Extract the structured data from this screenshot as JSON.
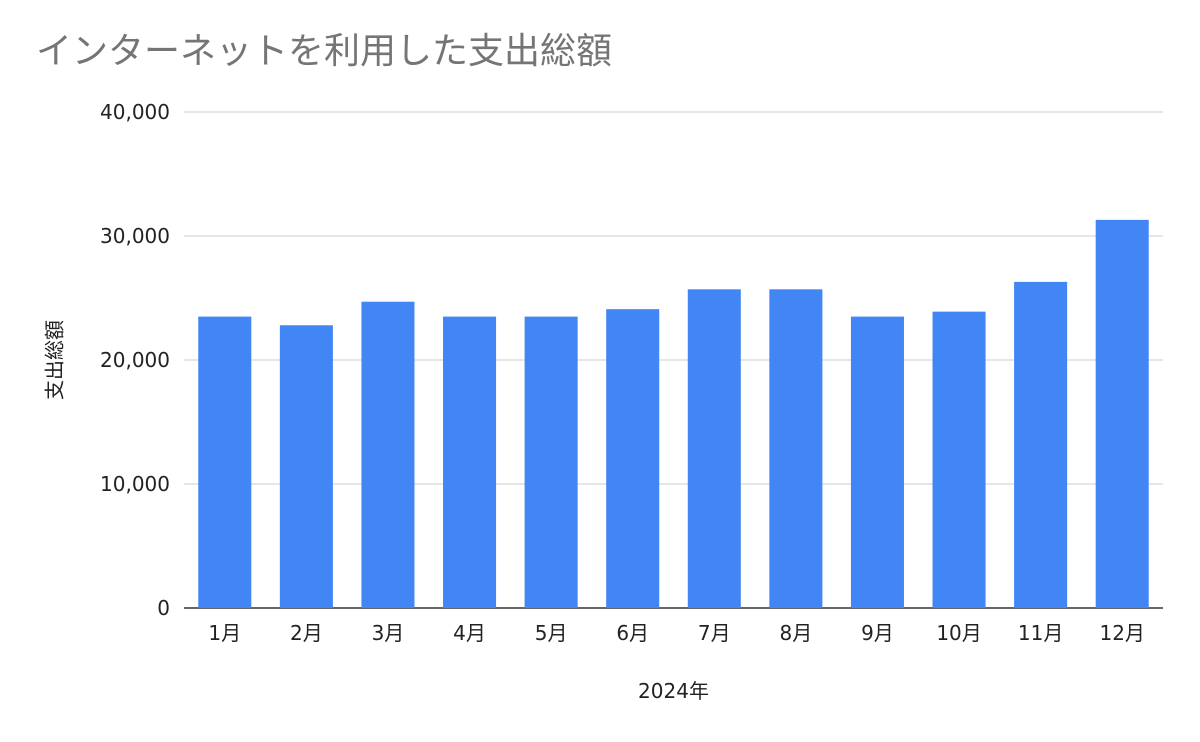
{
  "chart_data": {
    "type": "bar",
    "title": "インターネットを利用した支出総額",
    "xlabel": "2024年",
    "ylabel": "支出総額",
    "categories": [
      "1月",
      "2月",
      "3月",
      "4月",
      "5月",
      "6月",
      "7月",
      "8月",
      "9月",
      "10月",
      "11月",
      "12月"
    ],
    "values": [
      23500,
      22800,
      24700,
      23500,
      23500,
      24100,
      25700,
      25700,
      23500,
      23900,
      26300,
      31300
    ],
    "ylim": [
      0,
      40000
    ],
    "yticks": [
      0,
      10000,
      20000,
      30000,
      40000
    ],
    "ytick_labels": [
      "0",
      "10,000",
      "20,000",
      "30,000",
      "40,000"
    ],
    "grid": true,
    "legend": "none"
  },
  "colors": {
    "bar": "#4285f4",
    "grid": "#cccccc",
    "baseline": "#333333",
    "title": "#757575",
    "text": "#222222"
  }
}
